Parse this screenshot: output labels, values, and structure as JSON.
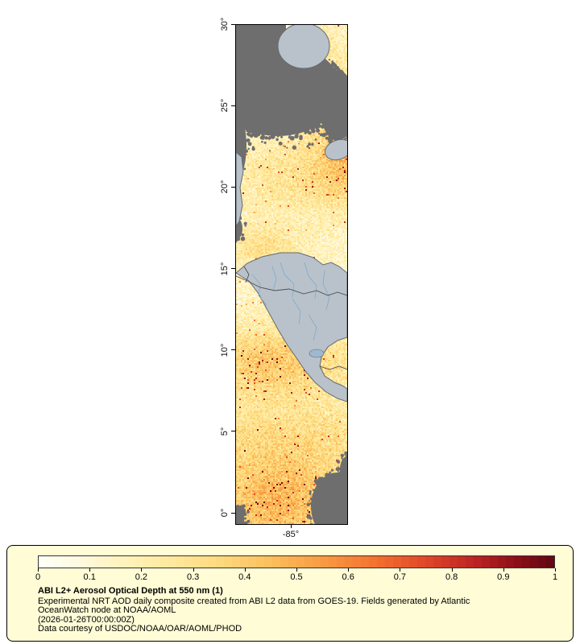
{
  "map": {
    "lat_tick_labels": [
      "30°",
      "25°",
      "20°",
      "15°",
      "10°",
      "5°",
      "0°"
    ],
    "lon_tick_labels": [
      "-85°"
    ],
    "colors": {
      "no_data_gray": "#6e6e6e",
      "land_gray": "#b9c2ca",
      "coast_outline": "#646b71",
      "border_line": "#4a4f54",
      "river_blue": "#7fa9d0",
      "lake_blue": "#9fb8cf",
      "frame": "#000000"
    },
    "colormap_stops": [
      {
        "t": 0.0,
        "c": "#fffff5"
      },
      {
        "t": 0.08,
        "c": "#fff9dd"
      },
      {
        "t": 0.15,
        "c": "#fff3bf"
      },
      {
        "t": 0.25,
        "c": "#ffe99e"
      },
      {
        "t": 0.35,
        "c": "#fdd97d"
      },
      {
        "t": 0.45,
        "c": "#fdbe5c"
      },
      {
        "t": 0.55,
        "c": "#f99b43"
      },
      {
        "t": 0.65,
        "c": "#f4742f"
      },
      {
        "t": 0.75,
        "c": "#e1482a"
      },
      {
        "t": 0.85,
        "c": "#bc2423"
      },
      {
        "t": 0.93,
        "c": "#8f1019"
      },
      {
        "t": 1.0,
        "c": "#640812"
      }
    ]
  },
  "legend": {
    "background": "#fffcd6",
    "border_color": "#000000",
    "tick_labels": [
      "0",
      "0.1",
      "0.2",
      "0.3",
      "0.4",
      "0.5",
      "0.6",
      "0.7",
      "0.8",
      "0.9",
      "1"
    ],
    "title": "ABI L2+ Aerosol Optical Depth at 550 nm (1)",
    "description_lines": [
      "Experimental NRT AOD daily composite created from ABI L2 data from GOES-19. Fields generated by Atlantic",
      "OceanWatch node at NOAA/AOML",
      "(2026-01-26T00:00:00Z)",
      "Data courtesy of USDOC/NOAA/OAR/AOML/PHOD"
    ]
  },
  "chart_data": {
    "type": "heatmap",
    "title": "ABI L2+ Aerosol Optical Depth at 550 nm (1)",
    "variable": "Aerosol Optical Depth at 550 nm",
    "colorbar_range": [
      0,
      1
    ],
    "colorbar_ticks": [
      0,
      0.1,
      0.2,
      0.3,
      0.4,
      0.5,
      0.6,
      0.7,
      0.8,
      0.9,
      1
    ],
    "lat_axis_ticks_deg": [
      30,
      25,
      20,
      15,
      10,
      5,
      0
    ],
    "lon_axis_tick_deg": -85,
    "source_text": "ABI L2 data from GOES-19"
  }
}
